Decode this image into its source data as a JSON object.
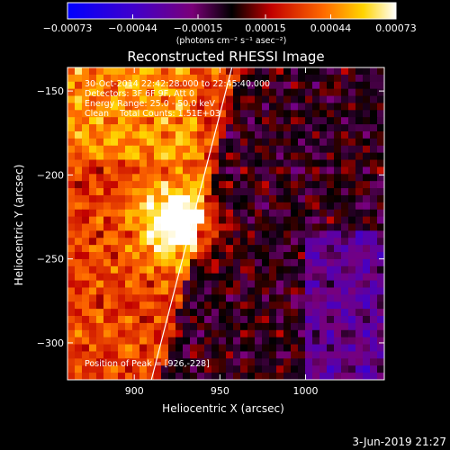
{
  "chart_data": {
    "type": "heatmap",
    "title": "Reconstructed RHESSI Image",
    "xlabel": "Heliocentric X (arcsec)",
    "ylabel": "Heliocentric Y (arcsec)",
    "xlim": [
      861,
      1046
    ],
    "ylim": [
      -322,
      -136
    ],
    "x_ticks": [
      900,
      950,
      1000
    ],
    "y_ticks": [
      -150,
      -200,
      -250,
      -300
    ],
    "x_tick_labels": [
      "900",
      "950",
      "1000"
    ],
    "y_tick_labels": [
      "−150",
      "−200",
      "−250",
      "−300"
    ],
    "colorbar": {
      "range": [
        -0.00073,
        0.00073
      ],
      "tick_values": [
        -0.00073,
        -0.00044,
        -0.00015,
        0.00015,
        0.00044,
        0.00073
      ],
      "tick_labels": [
        "−0.00073",
        "−0.00044",
        "−0.00015",
        "0.00015",
        "0.00044",
        "0.00073"
      ],
      "units": "(photons cm⁻² s⁻¹ asec⁻²)"
    },
    "annotations": [
      "30-Oct-2014 22:42:28.000 to 22:45:40.000",
      "Detectors: 3F 6F 9F, Att 0",
      "Energy Range: 25.0 - 50.0 keV",
      "Clean    Total Counts: 1.51E+03",
      "Position of Peak = [926,-228]"
    ],
    "peak": [
      926,
      -228
    ],
    "limb_line": [
      [
        910,
        -322
      ],
      [
        957,
        -136
      ]
    ]
  },
  "footer": {
    "date": "3-Jun-2019 21:27"
  }
}
